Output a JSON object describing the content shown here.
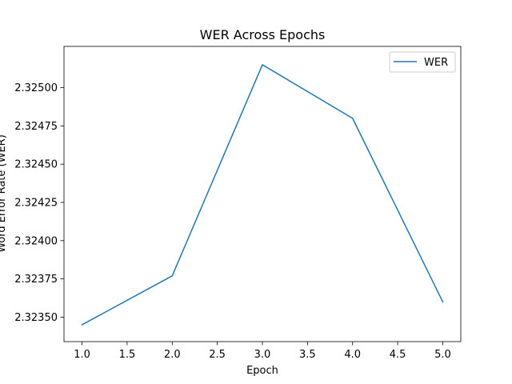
{
  "chart_data": {
    "type": "line",
    "title": "WER Across Epochs",
    "xlabel": "Epoch",
    "ylabel": "Word Error Rate (WER)",
    "x": [
      1.0,
      2.0,
      3.0,
      4.0,
      5.0
    ],
    "series": [
      {
        "name": "WER",
        "color": "#1f77b4",
        "values": [
          2.32345,
          2.32377,
          2.32515,
          2.3248,
          2.3236
        ]
      }
    ],
    "xlim": [
      0.8,
      5.2
    ],
    "ylim": [
      2.32334,
      2.32527
    ],
    "x_ticks": [
      1.0,
      1.5,
      2.0,
      2.5,
      3.0,
      3.5,
      4.0,
      4.5,
      5.0
    ],
    "x_tick_labels": [
      "1.0",
      "1.5",
      "2.0",
      "2.5",
      "3.0",
      "3.5",
      "4.0",
      "4.5",
      "5.0"
    ],
    "y_ticks": [
      2.3235,
      2.32375,
      2.324,
      2.32425,
      2.3245,
      2.32475,
      2.325
    ],
    "y_tick_labels": [
      "2.32350",
      "2.32375",
      "2.32400",
      "2.32425",
      "2.32450",
      "2.32475",
      "2.32500"
    ],
    "grid": false,
    "legend": "top-right"
  }
}
